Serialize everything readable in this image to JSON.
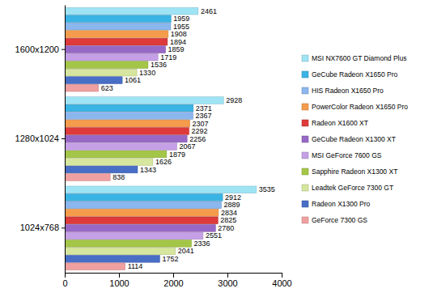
{
  "chart_data": {
    "type": "bar",
    "orientation": "horizontal",
    "categories": [
      "1600x1200",
      "1280x1024",
      "1024x768"
    ],
    "series": [
      {
        "name": "MSI NX7600 GT Diamond Plus",
        "color": "#9fe4f5",
        "values": [
          2461,
          2928,
          3535
        ]
      },
      {
        "name": "GeCube Radeon X1650 Pro",
        "color": "#3ab4e4",
        "values": [
          1959,
          2371,
          2912
        ]
      },
      {
        "name": "HIS Radeon X1650 Pro",
        "color": "#8cb6ee",
        "values": [
          1955,
          2367,
          2889
        ]
      },
      {
        "name": "PowerColor Radeon X1650 Pro",
        "color": "#f59c4c",
        "values": [
          1908,
          2307,
          2834
        ]
      },
      {
        "name": "Radeon X1600 XT",
        "color": "#de3a3a",
        "values": [
          1894,
          2292,
          2825
        ]
      },
      {
        "name": "GeCube Radeon X1300 XT",
        "color": "#9868c6",
        "values": [
          1859,
          2256,
          2780
        ]
      },
      {
        "name": "MSI GeForce 7600 GS",
        "color": "#c6a0e6",
        "values": [
          1719,
          2067,
          2551
        ]
      },
      {
        "name": "Sapphire Radeon X1300 XT",
        "color": "#a4c648",
        "values": [
          1536,
          1879,
          2336
        ]
      },
      {
        "name": "Leadtek GeForce 7300 GT",
        "color": "#d6e69e",
        "values": [
          1330,
          1626,
          2041
        ]
      },
      {
        "name": "Radeon X1300 Pro",
        "color": "#486ec6",
        "values": [
          1061,
          1343,
          1752
        ]
      },
      {
        "name": "GeForce 7300 GS",
        "color": "#f0a0a0",
        "values": [
          623,
          838,
          1114
        ]
      }
    ],
    "xlim": [
      0,
      4000
    ],
    "xticks": [
      0,
      1000,
      2000,
      3000,
      4000
    ],
    "data_labels": true,
    "legend": "right",
    "grid": false
  }
}
